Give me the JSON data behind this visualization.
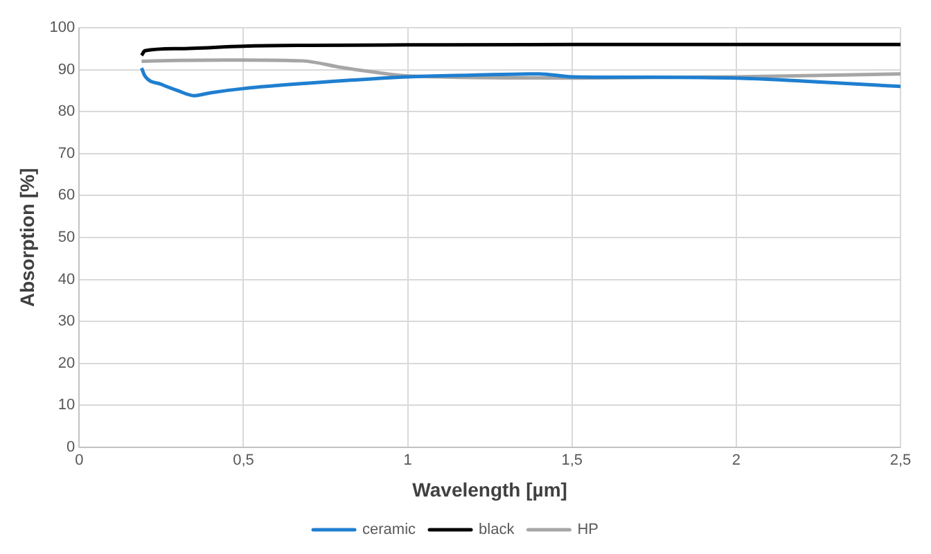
{
  "chart_data": {
    "type": "line",
    "xlabel": "Wavelength [µm]",
    "ylabel": "Absorption [%]",
    "xlim": [
      0,
      2.5
    ],
    "xticks": [
      0,
      {
        "value": 0.5,
        "label": "0,5"
      },
      1,
      {
        "value": 1.5,
        "label": "1,5"
      },
      2,
      {
        "value": 2.5,
        "label": "2,5"
      }
    ],
    "ylim": [
      0,
      100
    ],
    "yticks": [
      0,
      10,
      20,
      30,
      40,
      50,
      60,
      70,
      80,
      90,
      100
    ],
    "grid": true,
    "legend": "bottom",
    "marker": "none",
    "line_style": "solid",
    "series": [
      {
        "name": "ceramic",
        "color": "#1f7fd0",
        "x": [
          0.19,
          0.2,
          0.25,
          0.3,
          0.35,
          0.4,
          0.5,
          0.7,
          1.0,
          1.2,
          1.4,
          1.5,
          1.7,
          2.0,
          2.2,
          2.5
        ],
        "values": [
          90.4,
          88.5,
          86.5,
          85,
          83.8,
          84.5,
          85.5,
          86.8,
          88.3,
          88.7,
          89,
          88.3,
          88.2,
          88,
          87.3,
          86
        ]
      },
      {
        "name": "black",
        "color": "#000000",
        "x": [
          0.19,
          0.2,
          0.3,
          0.5,
          0.7,
          1.0,
          1.5,
          2.0,
          2.5
        ],
        "values": [
          93.4,
          94.5,
          95,
          95.6,
          95.8,
          95.9,
          96,
          96,
          96
        ]
      },
      {
        "name": "HP",
        "color": "#a6a6a6",
        "x": [
          0.19,
          0.3,
          0.5,
          0.68,
          0.8,
          0.9,
          1.0,
          1.5,
          2.0,
          2.5
        ],
        "values": [
          92,
          92.2,
          92.3,
          92.1,
          90.5,
          89.4,
          88.5,
          88,
          88.3,
          89
        ]
      }
    ]
  }
}
